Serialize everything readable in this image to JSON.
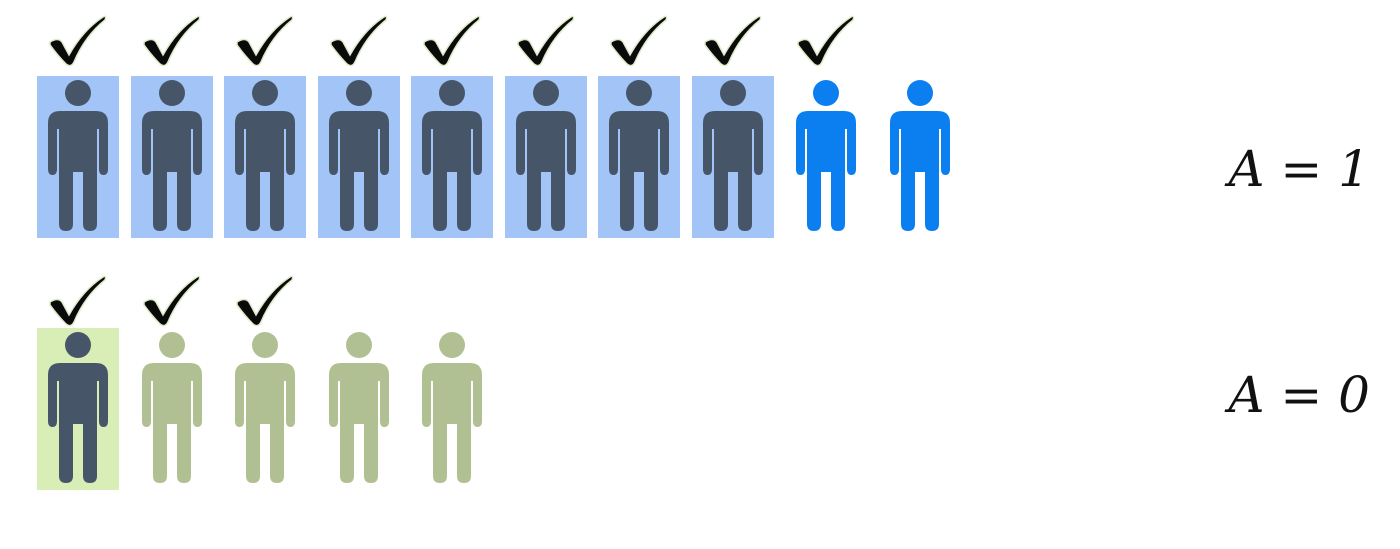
{
  "colors": {
    "person_dark": "#475569",
    "person_blue": "#0b7ff0",
    "person_green": "#b1c092",
    "highlight_blue": "#a3c4f7",
    "highlight_green": "#d9eeb7",
    "check": "#0a0a0a",
    "check_outline": "#dcebc9"
  },
  "groups": [
    {
      "label": "A = 1",
      "people": [
        {
          "style": "dark",
          "highlight": "blue",
          "checked": true
        },
        {
          "style": "dark",
          "highlight": "blue",
          "checked": true
        },
        {
          "style": "dark",
          "highlight": "blue",
          "checked": true
        },
        {
          "style": "dark",
          "highlight": "blue",
          "checked": true
        },
        {
          "style": "dark",
          "highlight": "blue",
          "checked": true
        },
        {
          "style": "dark",
          "highlight": "blue",
          "checked": true
        },
        {
          "style": "dark",
          "highlight": "blue",
          "checked": true
        },
        {
          "style": "dark",
          "highlight": "blue",
          "checked": true
        },
        {
          "style": "blue",
          "highlight": null,
          "checked": true
        },
        {
          "style": "blue",
          "highlight": null,
          "checked": false
        }
      ]
    },
    {
      "label": "A = 0",
      "people": [
        {
          "style": "dark",
          "highlight": "green",
          "checked": true
        },
        {
          "style": "green",
          "highlight": null,
          "checked": true
        },
        {
          "style": "green",
          "highlight": null,
          "checked": true
        },
        {
          "style": "green",
          "highlight": null,
          "checked": false
        },
        {
          "style": "green",
          "highlight": null,
          "checked": false
        }
      ]
    }
  ]
}
